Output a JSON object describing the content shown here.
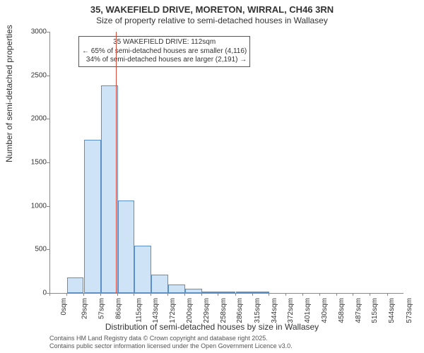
{
  "title_line1": "35, WAKEFIELD DRIVE, MORETON, WIRRAL, CH46 3RN",
  "title_line2": "Size of property relative to semi-detached houses in Wallasey",
  "ylabel": "Number of semi-detached properties",
  "xlabel": "Distribution of semi-detached houses by size in Wallasey",
  "chart": {
    "type": "histogram",
    "ylim": [
      0,
      3000
    ],
    "ytick_step": 500,
    "xlim": [
      0,
      600
    ],
    "xtick_labels": [
      "0sqm",
      "29sqm",
      "57sqm",
      "86sqm",
      "115sqm",
      "143sqm",
      "172sqm",
      "200sqm",
      "229sqm",
      "258sqm",
      "286sqm",
      "315sqm",
      "344sqm",
      "372sqm",
      "401sqm",
      "430sqm",
      "458sqm",
      "487sqm",
      "515sqm",
      "544sqm",
      "573sqm"
    ],
    "xtick_positions": [
      0,
      29,
      57,
      86,
      115,
      143,
      172,
      200,
      229,
      258,
      286,
      315,
      344,
      372,
      401,
      430,
      458,
      487,
      515,
      544,
      573
    ],
    "bars": [
      {
        "x0": 29,
        "x1": 57,
        "value": 180
      },
      {
        "x0": 57,
        "x1": 86,
        "value": 1760
      },
      {
        "x0": 86,
        "x1": 115,
        "value": 2380
      },
      {
        "x0": 115,
        "x1": 143,
        "value": 1060
      },
      {
        "x0": 143,
        "x1": 172,
        "value": 540
      },
      {
        "x0": 172,
        "x1": 200,
        "value": 210
      },
      {
        "x0": 200,
        "x1": 229,
        "value": 100
      },
      {
        "x0": 229,
        "x1": 258,
        "value": 50
      },
      {
        "x0": 258,
        "x1": 286,
        "value": 20
      },
      {
        "x0": 286,
        "x1": 315,
        "value": 20
      },
      {
        "x0": 315,
        "x1": 344,
        "value": 10
      },
      {
        "x0": 344,
        "x1": 372,
        "value": 5
      }
    ],
    "bar_fill": "#cfe3f7",
    "bar_border": "#5b8fc7",
    "reference_line": {
      "x": 112,
      "color": "#d94a3a"
    },
    "background_color": "#ffffff",
    "axis_color": "#888888",
    "tick_fontsize": 10,
    "label_fontsize": 12,
    "title_fontsize": 13
  },
  "annotation": {
    "line1": "35 WAKEFIELD DRIVE: 112sqm",
    "line2": "← 65% of semi-detached houses are smaller (4,116)",
    "line3": "34% of semi-detached houses are larger (2,191) →"
  },
  "footer_line1": "Contains HM Land Registry data © Crown copyright and database right 2025.",
  "footer_line2": "Contains public sector information licensed under the Open Government Licence v3.0."
}
